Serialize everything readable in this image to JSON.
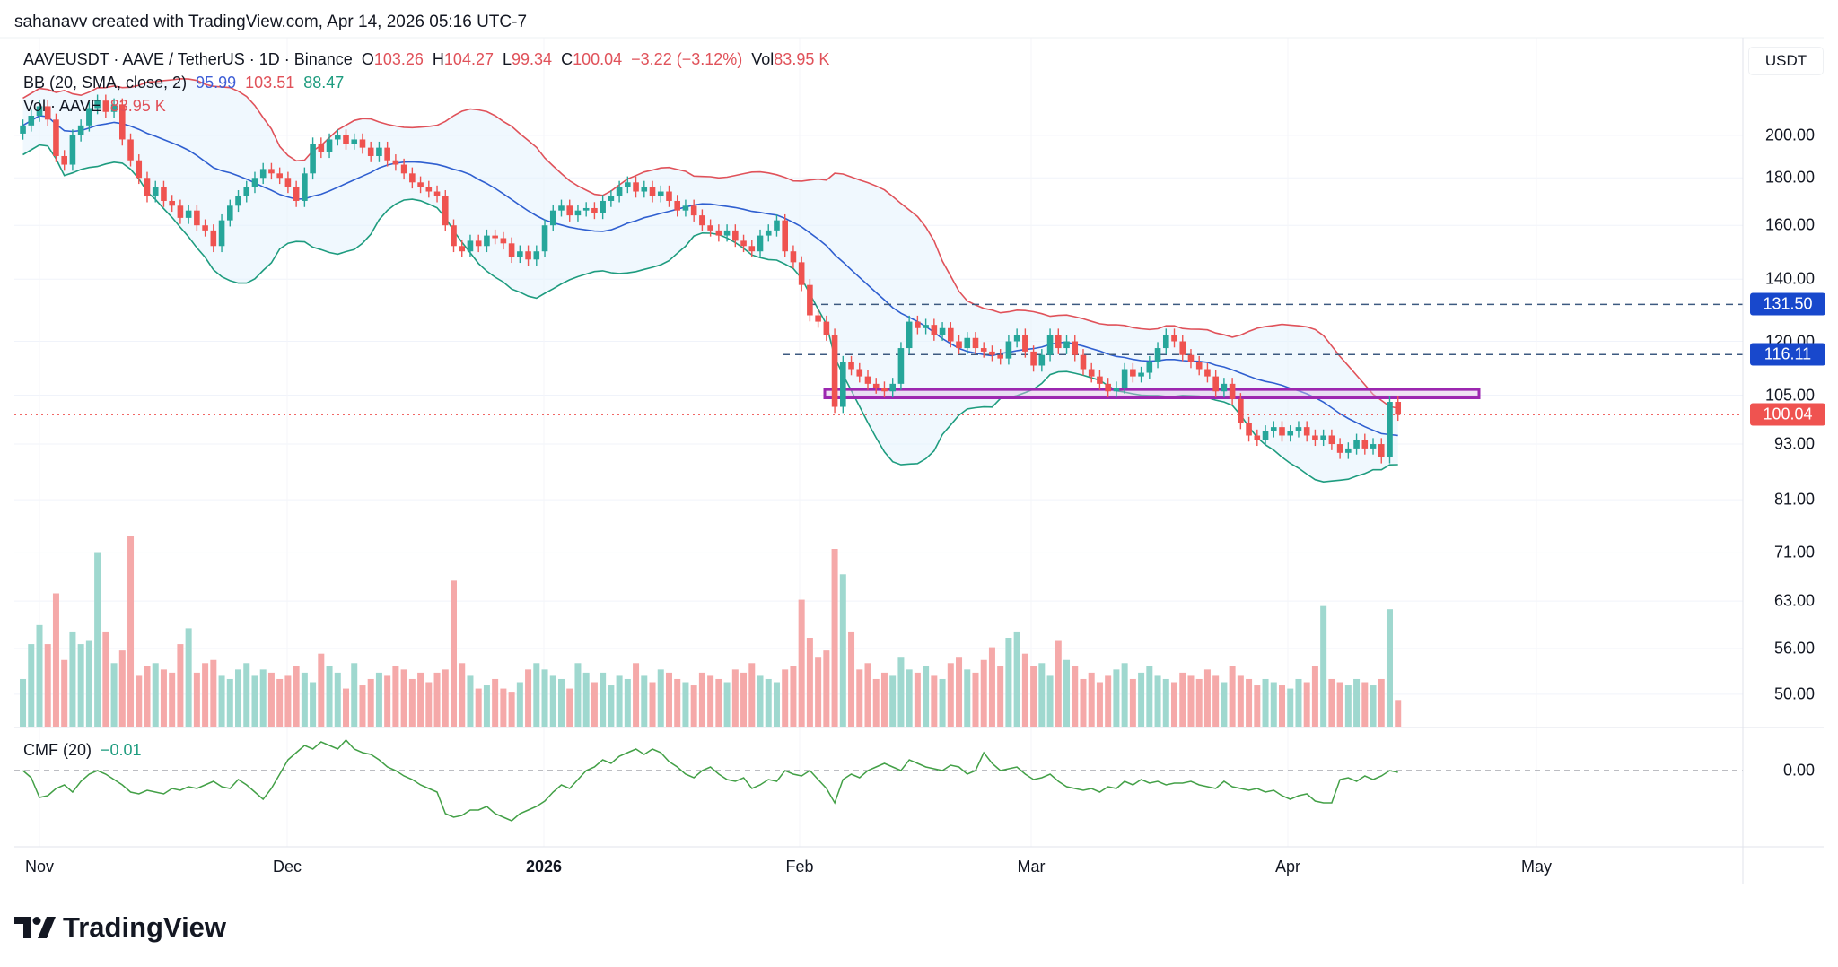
{
  "credit": "sahanavv created with TradingView.com, Apr 14, 2026 05:16 UTC-7",
  "legend": {
    "symbol": "AAVEUSDT · AAVE / TetherUS · 1D · Binance",
    "o_label": "O",
    "o": "103.26",
    "h_label": "H",
    "h": "104.27",
    "l_label": "L",
    "l": "99.34",
    "c_label": "C",
    "c": "100.04",
    "change": "−3.22 (−3.12%)",
    "vol_label": "Vol",
    "vol": "83.95 K",
    "bb_label": "BB (20, SMA, close, 2)",
    "bb_basis": "95.99",
    "bb_upper": "103.51",
    "bb_lower": "88.47",
    "volume_label": "Vol · AAVE",
    "volume_value": "83.95 K",
    "cmf_label": "CMF (20)",
    "cmf_value": "−0.01"
  },
  "axis": {
    "unit": "USDT",
    "price_ticks": [
      "200.00",
      "180.00",
      "160.00",
      "140.00",
      "120.00",
      "105.00",
      "93.00",
      "81.00",
      "71.00",
      "63.00",
      "56.00",
      "50.00"
    ],
    "cmf_tick": "0.00",
    "dates": [
      "Nov",
      "Dec",
      "2026",
      "Feb",
      "Mar",
      "Apr",
      "May"
    ]
  },
  "levels": {
    "resistance_1": "131.50",
    "resistance_2": "116.11",
    "last_price": "100.04",
    "zone_top": 106.5,
    "zone_bottom": 104.3
  },
  "colors": {
    "up": "#26a69a",
    "down": "#ef5350",
    "bb_basis": "#2f5fd0",
    "bb_upper": "#e0525a",
    "bb_lower": "#1e9c7f",
    "bb_fill": "#e3f2fd",
    "level": "#2962ff",
    "zone": "#9c27b0",
    "cmf": "#43a047"
  },
  "brand": "TradingView",
  "chart_data": {
    "type": "candlestick",
    "symbol": "AAVEUSDT",
    "interval": "1D",
    "scale": "log",
    "first_date": "2025-10-30",
    "last_date": "2026-04-14",
    "close": [
      205,
      210,
      215,
      208,
      190,
      186,
      200,
      205,
      214,
      218,
      212,
      216,
      198,
      188,
      180,
      172,
      176,
      170,
      168,
      163,
      166,
      160,
      158,
      152,
      162,
      168,
      172,
      176,
      180,
      184,
      182,
      180,
      176,
      170,
      182,
      196,
      192,
      198,
      200,
      196,
      198,
      194,
      190,
      194,
      188,
      186,
      182,
      178,
      176,
      174,
      172,
      160,
      152,
      150,
      154,
      152,
      156,
      155,
      153,
      148,
      150,
      147,
      150,
      160,
      166,
      168,
      164,
      166,
      167,
      165,
      170,
      172,
      176,
      178,
      174,
      176,
      172,
      174,
      170,
      166,
      168,
      164,
      160,
      158,
      156,
      158,
      154,
      152,
      150,
      156,
      158,
      162,
      150,
      146,
      138,
      128,
      126,
      122,
      102,
      114,
      112,
      110,
      108,
      107,
      106,
      108,
      118,
      126,
      124,
      125,
      122,
      124,
      120,
      118,
      121,
      118,
      117,
      116,
      115,
      120,
      122,
      117,
      113,
      116,
      122,
      118,
      120,
      116,
      112,
      110,
      108,
      106,
      107,
      112,
      110,
      111,
      114,
      118,
      122,
      120,
      116,
      114,
      112,
      110,
      106,
      108,
      104,
      98,
      95,
      94,
      96,
      97,
      95,
      96,
      97,
      95,
      94,
      95,
      93,
      91,
      92,
      94,
      92,
      93,
      90,
      103.26,
      100.04
    ],
    "volume_k": [
      150,
      260,
      320,
      260,
      420,
      210,
      300,
      260,
      270,
      550,
      300,
      200,
      240,
      600,
      160,
      190,
      200,
      180,
      170,
      260,
      310,
      170,
      200,
      210,
      160,
      150,
      180,
      200,
      160,
      180,
      170,
      150,
      160,
      190,
      170,
      140,
      230,
      190,
      170,
      120,
      200,
      130,
      150,
      170,
      160,
      190,
      180,
      150,
      170,
      140,
      170,
      180,
      460,
      200,
      160,
      120,
      130,
      150,
      120,
      110,
      140,
      180,
      200,
      180,
      160,
      150,
      120,
      200,
      170,
      140,
      170,
      130,
      160,
      150,
      200,
      160,
      140,
      180,
      170,
      150,
      140,
      130,
      170,
      160,
      150,
      140,
      180,
      170,
      200,
      160,
      150,
      140,
      180,
      190,
      400,
      280,
      220,
      240,
      560,
      480,
      300,
      180,
      200,
      150,
      170,
      160,
      220,
      180,
      170,
      190,
      160,
      150,
      200,
      220,
      180,
      170,
      210,
      250,
      190,
      280,
      300,
      230,
      190,
      200,
      160,
      270,
      210,
      190,
      150,
      170,
      140,
      160,
      180,
      200,
      150,
      170,
      190,
      160,
      150,
      140,
      170,
      160,
      150,
      180,
      160,
      140,
      190,
      160,
      150,
      130,
      150,
      140,
      130,
      120,
      150,
      140,
      190,
      380,
      150,
      140,
      130,
      150,
      140,
      130,
      150,
      370,
      83.95
    ],
    "cmf": [
      0.0,
      -0.04,
      -0.15,
      -0.14,
      -0.1,
      -0.08,
      -0.12,
      -0.06,
      -0.02,
      0.0,
      -0.02,
      -0.05,
      -0.08,
      -0.12,
      -0.13,
      -0.11,
      -0.12,
      -0.13,
      -0.1,
      -0.11,
      -0.09,
      -0.1,
      -0.08,
      -0.06,
      -0.09,
      -0.1,
      -0.05,
      -0.08,
      -0.12,
      -0.16,
      -0.1,
      -0.02,
      0.06,
      0.1,
      0.14,
      0.12,
      0.16,
      0.14,
      0.12,
      0.17,
      0.12,
      0.1,
      0.09,
      0.06,
      0.02,
      0.0,
      -0.03,
      -0.05,
      -0.08,
      -0.1,
      -0.12,
      -0.24,
      -0.26,
      -0.25,
      -0.22,
      -0.22,
      -0.2,
      -0.24,
      -0.26,
      -0.28,
      -0.24,
      -0.22,
      -0.2,
      -0.17,
      -0.12,
      -0.08,
      -0.1,
      -0.05,
      0.0,
      0.02,
      0.06,
      0.04,
      0.08,
      0.1,
      0.12,
      0.09,
      0.12,
      0.1,
      0.05,
      0.02,
      -0.02,
      -0.04,
      0.0,
      0.02,
      -0.02,
      -0.05,
      -0.06,
      -0.04,
      -0.1,
      -0.08,
      -0.05,
      -0.06,
      0.0,
      -0.02,
      -0.03,
      0.0,
      -0.05,
      -0.1,
      -0.18,
      -0.05,
      -0.02,
      -0.04,
      0.0,
      0.02,
      0.04,
      0.02,
      0.0,
      0.06,
      0.04,
      0.02,
      0.01,
      0.0,
      0.03,
      0.02,
      -0.02,
      0.0,
      0.1,
      0.04,
      0.0,
      0.01,
      0.02,
      -0.02,
      -0.05,
      -0.04,
      -0.02,
      -0.06,
      -0.09,
      -0.1,
      -0.11,
      -0.1,
      -0.12,
      -0.09,
      -0.1,
      -0.06,
      -0.08,
      -0.05,
      -0.07,
      -0.06,
      -0.08,
      -0.07,
      -0.07,
      -0.06,
      -0.08,
      -0.09,
      -0.1,
      -0.06,
      -0.09,
      -0.1,
      -0.11,
      -0.1,
      -0.12,
      -0.11,
      -0.14,
      -0.16,
      -0.14,
      -0.13,
      -0.17,
      -0.18,
      -0.18,
      -0.05,
      -0.04,
      -0.06,
      -0.03,
      -0.05,
      -0.03,
      0.0,
      -0.01
    ],
    "bollinger": {
      "period": 20,
      "stddev": 2
    },
    "horizontal_levels": [
      131.5,
      116.11
    ],
    "grid": true
  }
}
